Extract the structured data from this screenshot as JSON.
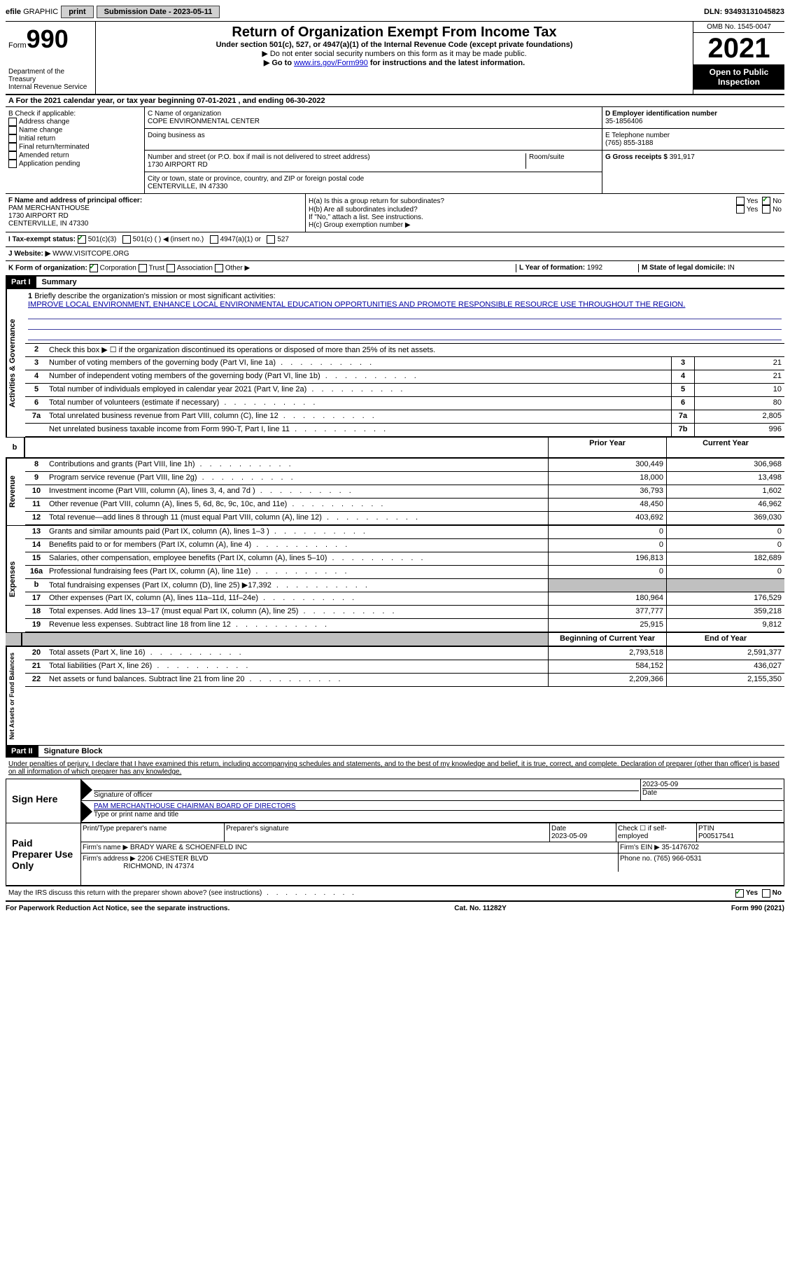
{
  "topbar": {
    "efile_prefix": "efile",
    "graphic": "GRAPHIC",
    "print": "print",
    "sub_date_label": "Submission Date - 2023-05-11",
    "dln_label": "DLN: 93493131045823"
  },
  "header": {
    "form_label": "Form",
    "form_num": "990",
    "dept": "Department of the Treasury",
    "irs": "Internal Revenue Service",
    "title": "Return of Organization Exempt From Income Tax",
    "subtitle": "Under section 501(c), 527, or 4947(a)(1) of the Internal Revenue Code (except private foundations)",
    "note1": "▶ Do not enter social security numbers on this form as it may be made public.",
    "note2_pre": "▶ Go to ",
    "note2_link": "www.irs.gov/Form990",
    "note2_post": " for instructions and the latest information.",
    "omb": "OMB No. 1545-0047",
    "year": "2021",
    "open": "Open to Public Inspection"
  },
  "row_a": "A For the 2021 calendar year, or tax year beginning 07-01-2021    , and ending 06-30-2022",
  "col_b": {
    "heading": "B Check if applicable:",
    "opts": [
      "Address change",
      "Name change",
      "Initial return",
      "Final return/terminated",
      "Amended return",
      "Application pending"
    ]
  },
  "col_c": {
    "name_label": "C Name of organization",
    "name": "COPE ENVIRONMENTAL CENTER",
    "dba": "Doing business as",
    "addr_label": "Number and street (or P.O. box if mail is not delivered to street address)",
    "room": "Room/suite",
    "addr": "1730 AIRPORT RD",
    "city_label": "City or town, state or province, country, and ZIP or foreign postal code",
    "city": "CENTERVILLE, IN  47330"
  },
  "col_d": {
    "ein_label": "D Employer identification number",
    "ein": "35-1856406",
    "tel_label": "E Telephone number",
    "tel": "(765) 855-3188",
    "gross_label": "G Gross receipts $",
    "gross": "391,917"
  },
  "row_f": {
    "label": "F  Name and address of principal officer:",
    "name": "PAM MERCHANTHOUSE",
    "addr1": "1730 AIRPORT RD",
    "addr2": "CENTERVILLE, IN  47330"
  },
  "row_h": {
    "ha": "H(a)  Is this a group return for subordinates?",
    "hb": "H(b)  Are all subordinates included?",
    "hb_note": "If \"No,\" attach a list. See instructions.",
    "hc": "H(c)  Group exemption number ▶",
    "yes": "Yes",
    "no": "No"
  },
  "status": {
    "i_label": "I   Tax-exempt status:",
    "i_501c3": "501(c)(3)",
    "i_501c": "501(c) (  ) ◀ (insert no.)",
    "i_4947": "4947(a)(1) or",
    "i_527": "527",
    "j_label": "J   Website: ▶",
    "j_val": "WWW.VISITCOPE.ORG"
  },
  "row_k": {
    "k_label": "K Form of organization:",
    "k_corp": "Corporation",
    "k_trust": "Trust",
    "k_assoc": "Association",
    "k_other": "Other ▶",
    "l_label": "L Year of formation:",
    "l_val": "1992",
    "m_label": "M State of legal domicile:",
    "m_val": "IN"
  },
  "part1": {
    "label": "Part I",
    "title": "Summary"
  },
  "governance": {
    "side": "Activities & Governance",
    "q1": "Briefly describe the organization's mission or most significant activities:",
    "q1_ans": "IMPROVE LOCAL ENVIRONMENT, ENHANCE LOCAL ENVIRONMENTAL EDUCATION OPPORTUNITIES AND PROMOTE RESPONSIBLE RESOURCE USE THROUGHOUT THE REGION.",
    "q2": "Check this box ▶ ☐  if the organization discontinued its operations or disposed of more than 25% of its net assets.",
    "rows": [
      {
        "n": "3",
        "d": "Number of voting members of the governing body (Part VI, line 1a)",
        "b": "3",
        "v": "21"
      },
      {
        "n": "4",
        "d": "Number of independent voting members of the governing body (Part VI, line 1b)",
        "b": "4",
        "v": "21"
      },
      {
        "n": "5",
        "d": "Total number of individuals employed in calendar year 2021 (Part V, line 2a)",
        "b": "5",
        "v": "10"
      },
      {
        "n": "6",
        "d": "Total number of volunteers (estimate if necessary)",
        "b": "6",
        "v": "80"
      },
      {
        "n": "7a",
        "d": "Total unrelated business revenue from Part VIII, column (C), line 12",
        "b": "7a",
        "v": "2,805"
      },
      {
        "n": "",
        "d": "Net unrelated business taxable income from Form 990-T, Part I, line 11",
        "b": "7b",
        "v": "996"
      }
    ]
  },
  "yearhdr": {
    "prior": "Prior Year",
    "current": "Current Year",
    "begin": "Beginning of Current Year",
    "end": "End of Year"
  },
  "revenue": {
    "side": "Revenue",
    "rows": [
      {
        "n": "8",
        "d": "Contributions and grants (Part VIII, line 1h)",
        "p": "300,449",
        "c": "306,968"
      },
      {
        "n": "9",
        "d": "Program service revenue (Part VIII, line 2g)",
        "p": "18,000",
        "c": "13,498"
      },
      {
        "n": "10",
        "d": "Investment income (Part VIII, column (A), lines 3, 4, and 7d )",
        "p": "36,793",
        "c": "1,602"
      },
      {
        "n": "11",
        "d": "Other revenue (Part VIII, column (A), lines 5, 6d, 8c, 9c, 10c, and 11e)",
        "p": "48,450",
        "c": "46,962"
      },
      {
        "n": "12",
        "d": "Total revenue—add lines 8 through 11 (must equal Part VIII, column (A), line 12)",
        "p": "403,692",
        "c": "369,030"
      }
    ]
  },
  "expenses": {
    "side": "Expenses",
    "rows": [
      {
        "n": "13",
        "d": "Grants and similar amounts paid (Part IX, column (A), lines 1–3 )",
        "p": "0",
        "c": "0"
      },
      {
        "n": "14",
        "d": "Benefits paid to or for members (Part IX, column (A), line 4)",
        "p": "0",
        "c": "0"
      },
      {
        "n": "15",
        "d": "Salaries, other compensation, employee benefits (Part IX, column (A), lines 5–10)",
        "p": "196,813",
        "c": "182,689"
      },
      {
        "n": "16a",
        "d": "Professional fundraising fees (Part IX, column (A), line 11e)",
        "p": "0",
        "c": "0"
      },
      {
        "n": "b",
        "d": "Total fundraising expenses (Part IX, column (D), line 25) ▶17,392",
        "p": "",
        "c": "",
        "gray": true
      },
      {
        "n": "17",
        "d": "Other expenses (Part IX, column (A), lines 11a–11d, 11f–24e)",
        "p": "180,964",
        "c": "176,529"
      },
      {
        "n": "18",
        "d": "Total expenses. Add lines 13–17 (must equal Part IX, column (A), line 25)",
        "p": "377,777",
        "c": "359,218"
      },
      {
        "n": "19",
        "d": "Revenue less expenses. Subtract line 18 from line 12",
        "p": "25,915",
        "c": "9,812"
      }
    ]
  },
  "netassets": {
    "side": "Net Assets or Fund Balances",
    "rows": [
      {
        "n": "20",
        "d": "Total assets (Part X, line 16)",
        "p": "2,793,518",
        "c": "2,591,377"
      },
      {
        "n": "21",
        "d": "Total liabilities (Part X, line 26)",
        "p": "584,152",
        "c": "436,027"
      },
      {
        "n": "22",
        "d": "Net assets or fund balances. Subtract line 21 from line 20",
        "p": "2,209,366",
        "c": "2,155,350"
      }
    ]
  },
  "part2": {
    "label": "Part II",
    "title": "Signature Block",
    "penalty": "Under penalties of perjury, I declare that I have examined this return, including accompanying schedules and statements, and to the best of my knowledge and belief, it is true, correct, and complete. Declaration of preparer (other than officer) is based on all information of which preparer has any knowledge."
  },
  "sign": {
    "label": "Sign Here",
    "sig_officer": "Signature of officer",
    "date": "Date",
    "date_val": "2023-05-09",
    "name_label": "Type or print name and title",
    "name_val": "PAM MERCHANTHOUSE  CHAIRMAN BOARD OF DIRECTORS"
  },
  "preparer": {
    "label": "Paid Preparer Use Only",
    "print_name": "Print/Type preparer's name",
    "sig": "Preparer's signature",
    "date": "Date",
    "date_val": "2023-05-09",
    "check": "Check ☐ if self-employed",
    "ptin_label": "PTIN",
    "ptin": "P00517541",
    "firm_name_label": "Firm's name     ▶",
    "firm_name": "BRADY WARE & SCHOENFELD INC",
    "firm_ein_label": "Firm's EIN ▶",
    "firm_ein": "35-1476702",
    "firm_addr_label": "Firm's address ▶",
    "firm_addr1": "2206 CHESTER BLVD",
    "firm_addr2": "RICHMOND, IN  47374",
    "phone_label": "Phone no.",
    "phone": "(765) 966-0531"
  },
  "footer": {
    "discuss": "May the IRS discuss this return with the preparer shown above? (see instructions)",
    "yes": "Yes",
    "no": "No",
    "paperwork": "For Paperwork Reduction Act Notice, see the separate instructions.",
    "cat": "Cat. No. 11282Y",
    "form": "Form 990 (2021)"
  }
}
